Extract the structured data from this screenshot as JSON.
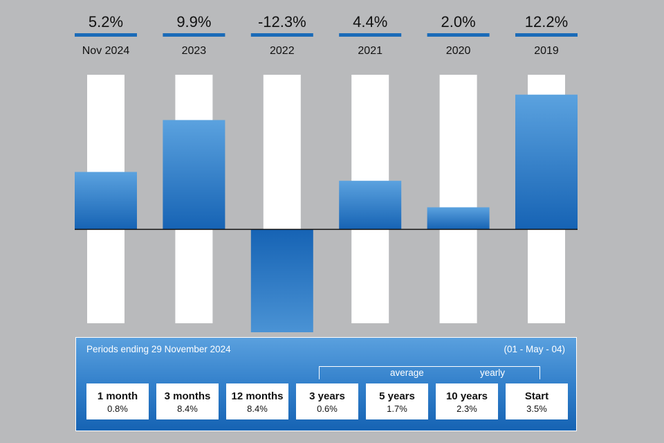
{
  "chart_data": {
    "type": "bar",
    "categories": [
      "Nov 2024",
      "2023",
      "2022",
      "2021",
      "2020",
      "2019"
    ],
    "values": [
      5.2,
      9.9,
      -12.3,
      4.4,
      2.0,
      12.2
    ],
    "value_labels": [
      "5.2%",
      "9.9%",
      "-12.3%",
      "4.4%",
      "2.0%",
      "12.2%"
    ],
    "ylim": [
      -8.5,
      14.0
    ],
    "title": "",
    "xlabel": "",
    "ylabel": "",
    "grid": false,
    "bar_color_top": "#5ba2df",
    "bar_color_bottom": "#1663b4",
    "background_column_color": "#ffffff",
    "label_underline_color": "#1a6bb8"
  },
  "summary": {
    "title": "Periods ending 29 November 2024",
    "start_date": "(01 - May - 04)",
    "average_label": "average",
    "yearly_label": "yearly",
    "periods": [
      {
        "label": "1 month",
        "value": "0.8%"
      },
      {
        "label": "3 months",
        "value": "8.4%"
      },
      {
        "label": "12 months",
        "value": "8.4%"
      },
      {
        "label": "3 years",
        "value": "0.6%"
      },
      {
        "label": "5 years",
        "value": "1.7%"
      },
      {
        "label": "10 years",
        "value": "2.3%"
      },
      {
        "label": "Start",
        "value": "3.5%"
      }
    ]
  }
}
